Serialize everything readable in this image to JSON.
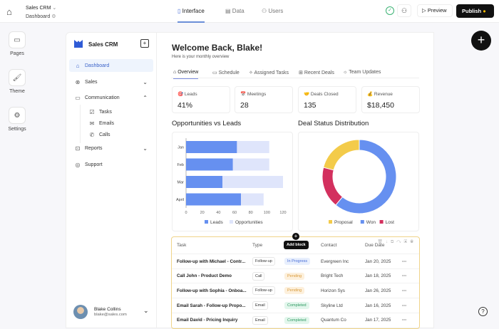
{
  "topbar": {
    "app_name": "Sales CRM",
    "page": "Dashboard",
    "tabs": [
      {
        "label": "Interface",
        "active": true
      },
      {
        "label": "Data"
      },
      {
        "label": "Users"
      }
    ],
    "preview": "Preview",
    "publish": "Publish"
  },
  "rail": [
    {
      "label": "Pages"
    },
    {
      "label": "Theme"
    },
    {
      "label": "Settings"
    }
  ],
  "sidebar": {
    "title": "Sales CRM",
    "items": [
      {
        "label": "Dashboard",
        "active": true
      },
      {
        "label": "Sales"
      },
      {
        "label": "Communication"
      },
      {
        "label": "Tasks"
      },
      {
        "label": "Emails"
      },
      {
        "label": "Calls"
      },
      {
        "label": "Reports"
      },
      {
        "label": "Support"
      }
    ],
    "user": {
      "name": "Blake Collins",
      "email": "blake@sales.com"
    }
  },
  "main": {
    "title": "Welcome Back, Blake!",
    "subtitle": "Here is your monthly overview",
    "tabs": [
      {
        "label": "Overview",
        "active": true
      },
      {
        "label": "Schedule"
      },
      {
        "label": "Assigned Tasks"
      },
      {
        "label": "Recent Deals"
      },
      {
        "label": "Team Updates"
      }
    ],
    "stats": [
      {
        "icon": "🎯",
        "label": "Leads",
        "value": "41%"
      },
      {
        "icon": "📅",
        "label": "Meetings",
        "value": "28"
      },
      {
        "icon": "🤝",
        "label": "Deals Closed",
        "value": "135"
      },
      {
        "icon": "💰",
        "label": "Revenue",
        "value": "$18,450"
      }
    ],
    "tooltip": "Add block",
    "table": {
      "headers": [
        "Task",
        "Type",
        "Status",
        "Contact",
        "Due Date"
      ],
      "rows": [
        {
          "task": "Follow-up with Michael - Contr...",
          "type": "Follow-up",
          "status": "In Progress",
          "contact": "Evergreen Inc",
          "due": "Jan 20, 2025"
        },
        {
          "task": "Call John - Product Demo",
          "type": "Call",
          "status": "Pending",
          "contact": "Bright Tech",
          "due": "Jan 18, 2025"
        },
        {
          "task": "Follow-up with Sophia - Onboa...",
          "type": "Follow-up",
          "status": "Pending",
          "contact": "Horizon Sys",
          "due": "Jan 26, 2025"
        },
        {
          "task": "Email Sarah - Follow-up Propo...",
          "type": "Email",
          "status": "Completed",
          "contact": "Skyline Ltd",
          "due": "Jan 16, 2025"
        },
        {
          "task": "Email David - Pricing Inquiry",
          "type": "Email",
          "status": "Completed",
          "contact": "Quantum Co",
          "due": "Jan 17, 2025"
        }
      ]
    }
  },
  "status_colors": {
    "In Progress": [
      "#e8effd",
      "#4a6fd8"
    ],
    "Pending": [
      "#fdf0dc",
      "#d99a3a"
    ],
    "Completed": [
      "#e2f6ec",
      "#2f9a62"
    ]
  },
  "chart_data": [
    {
      "type": "bar",
      "orientation": "horizontal",
      "stacked": true,
      "title": "Opportunities vs Leads",
      "categories": [
        "Jan",
        "Feb",
        "Mar",
        "April"
      ],
      "series": [
        {
          "name": "Leads",
          "values": [
            63,
            58,
            45,
            68
          ],
          "color": "#6690f0"
        },
        {
          "name": "Opportunities",
          "values": [
            40,
            45,
            75,
            28
          ],
          "color": "#dfe5fb"
        }
      ],
      "xlim": [
        0,
        120
      ],
      "xticks": [
        0,
        20,
        40,
        60,
        80,
        100,
        120
      ],
      "legend": "bottom"
    },
    {
      "type": "pie",
      "donut": true,
      "title": "Deal Status Distribution",
      "slices": [
        {
          "name": "Won",
          "value": 61,
          "color": "#6690f0"
        },
        {
          "name": "Lost",
          "value": 18,
          "color": "#d3305e"
        },
        {
          "name": "Proposal",
          "value": 21,
          "color": "#f3cb4a"
        }
      ],
      "legend_order": [
        "Proposal",
        "Won",
        "Lost"
      ],
      "legend": "bottom"
    }
  ]
}
